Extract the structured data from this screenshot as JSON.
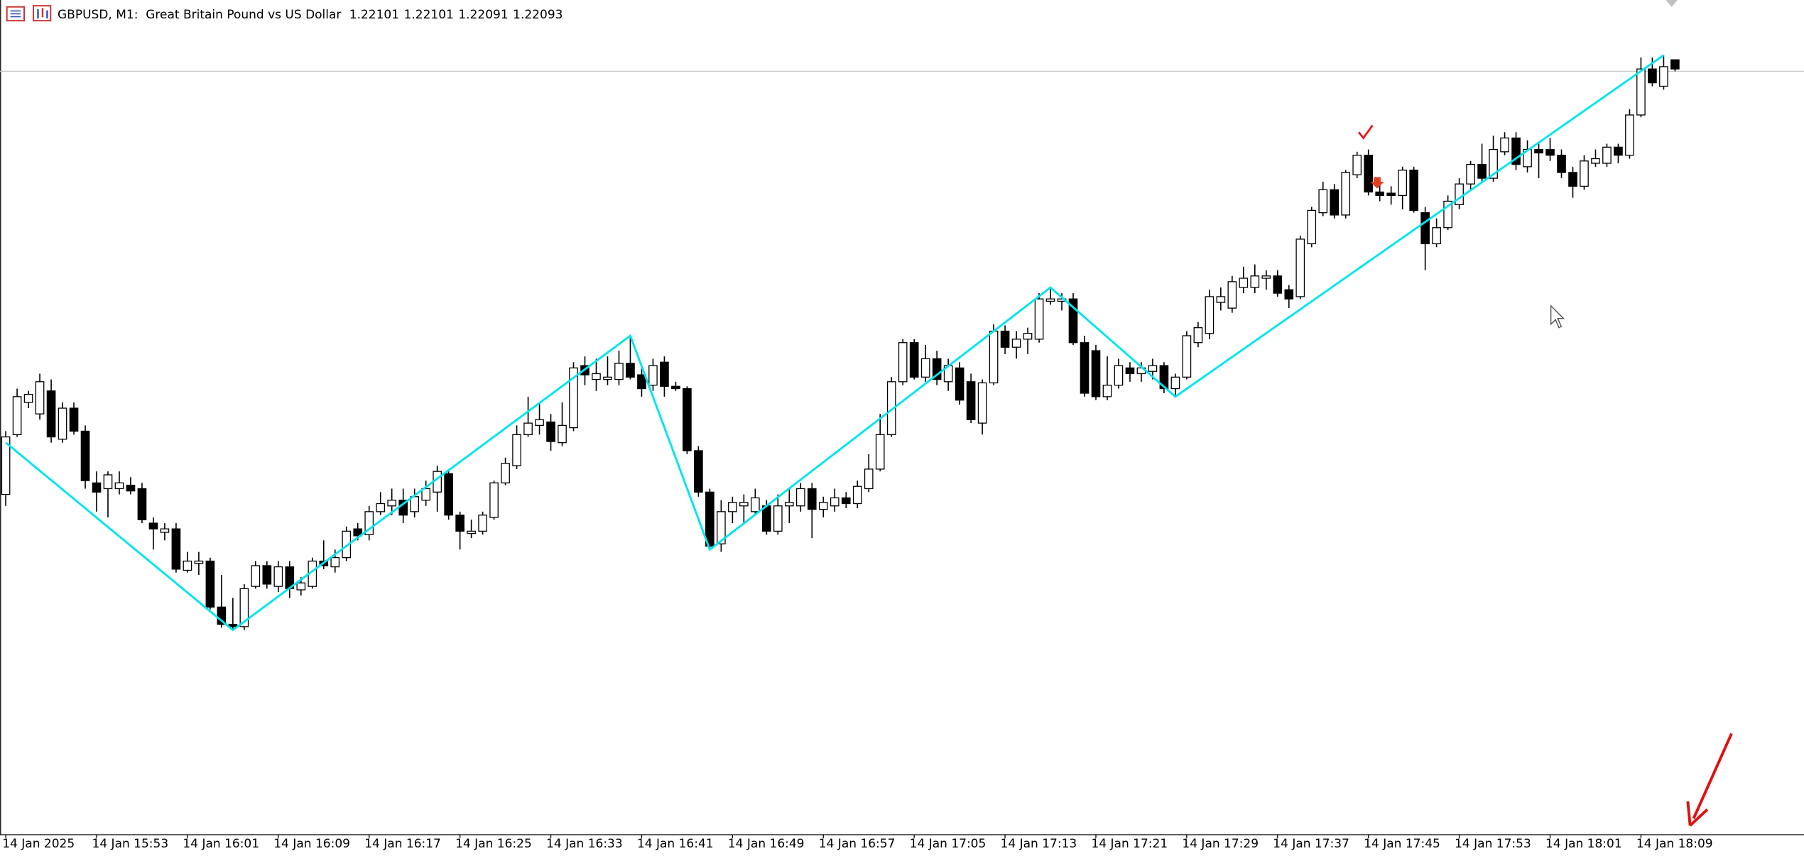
{
  "chart_data": {
    "type": "candlestick",
    "title": "GBPUSD, M1:  Great Britain Pound vs US Dollar",
    "categories": [
      "14 Jan 2025",
      null,
      null,
      null,
      null,
      null,
      null,
      null,
      "14 Jan 15:53",
      null,
      null,
      null,
      null,
      null,
      null,
      null,
      "14 Jan 16:01",
      null,
      null,
      null,
      null,
      null,
      null,
      null,
      "14 Jan 16:09",
      null,
      null,
      null,
      null,
      null,
      null,
      null,
      "14 Jan 16:17",
      null,
      null,
      null,
      null,
      null,
      null,
      null,
      "14 Jan 16:25",
      null,
      null,
      null,
      null,
      null,
      null,
      null,
      "14 Jan 16:33",
      null,
      null,
      null,
      null,
      null,
      null,
      null,
      "14 Jan 16:41",
      null,
      null,
      null,
      null,
      null,
      null,
      null,
      "14 Jan 16:49",
      null,
      null,
      null,
      null,
      null,
      null,
      null,
      "14 Jan 16:57",
      null,
      null,
      null,
      null,
      null,
      null,
      null,
      "14 Jan 17:05",
      null,
      null,
      null,
      null,
      null,
      null,
      null,
      "14 Jan 17:13",
      null,
      null,
      null,
      null,
      null,
      null,
      null,
      "14 Jan 17:21",
      null,
      null,
      null,
      null,
      null,
      null,
      null,
      "14 Jan 17:29",
      null,
      null,
      null,
      null,
      null,
      null,
      null,
      "14 Jan 17:37",
      null,
      null,
      null,
      null,
      null,
      null,
      null,
      "14 Jan 17:45",
      null,
      null,
      null,
      null,
      null,
      null,
      null,
      "14 Jan 17:53",
      null,
      null,
      null,
      null,
      null,
      null,
      null,
      "14 Jan 18:01",
      null,
      null,
      null,
      null,
      null,
      null,
      null,
      "14 Jan 18:09",
      null,
      null,
      null
    ],
    "open": [
      1.21723,
      1.21775,
      1.21803,
      1.21793,
      1.21813,
      1.21771,
      1.21798,
      1.21778,
      1.21733,
      1.21728,
      1.21728,
      1.21731,
      1.21728,
      1.21698,
      1.2169,
      1.21693,
      1.21657,
      1.21663,
      1.21665,
      1.21625,
      1.2161,
      1.21608,
      1.21643,
      1.21661,
      1.21643,
      1.2166,
      1.2164,
      1.21643,
      1.21665,
      1.2166,
      1.21668,
      1.21693,
      1.21688,
      1.21708,
      1.21713,
      1.21718,
      1.21708,
      1.21718,
      1.21725,
      1.21741,
      1.21705,
      1.21689,
      1.21691,
      1.21703,
      1.21733,
      1.21748,
      1.21775,
      1.21783,
      1.21786,
      1.21768,
      1.21781,
      1.21835,
      1.21823,
      1.21823,
      1.21823,
      1.21837,
      1.21827,
      1.21818,
      1.21838,
      1.21817,
      1.21815,
      1.21761,
      1.21725,
      1.2168,
      1.21708,
      1.21713,
      1.21708,
      1.21713,
      1.21691,
      1.21713,
      1.21713,
      1.21728,
      1.2171,
      1.21713,
      1.2172,
      1.21715,
      1.21728,
      1.21745,
      1.21775,
      1.21821,
      1.21855,
      1.21825,
      1.21841,
      1.21821,
      1.21833,
      1.21821,
      1.21785,
      1.2182,
      1.21865,
      1.21851,
      1.21858,
      1.21858,
      1.21891,
      1.21891,
      1.21893,
      1.21855,
      1.21848,
      1.21808,
      1.21818,
      1.21833,
      1.21828,
      1.2183,
      1.21835,
      1.21815,
      1.21825,
      1.21855,
      1.21863,
      1.2189,
      1.21885,
      1.21903,
      1.21903,
      1.21911,
      1.21913,
      1.21901,
      1.21895,
      1.21941,
      1.21968,
      1.21988,
      1.21966,
      1.22001,
      1.22018,
      1.21986,
      1.21985,
      1.21983,
      1.22005,
      1.21968,
      1.21941,
      1.21955,
      1.21975,
      1.21993,
      1.2201,
      1.21998,
      1.22021,
      1.22033,
      1.22008,
      1.22023,
      1.22023,
      1.22018,
      1.22003,
      1.21991,
      1.22011,
      1.22011,
      1.22025,
      1.22018,
      1.22053,
      1.22093,
      1.22078,
      1.22101
    ],
    "high": [
      1.21778,
      1.21815,
      1.21813,
      1.21828,
      1.21823,
      1.21803,
      1.21803,
      1.21783,
      1.21743,
      1.21743,
      1.21743,
      1.21738,
      1.21733,
      1.21703,
      1.21698,
      1.21698,
      1.21673,
      1.21673,
      1.21668,
      1.21653,
      1.21633,
      1.21645,
      1.21665,
      1.21665,
      1.21665,
      1.21665,
      1.21651,
      1.21668,
      1.21683,
      1.21675,
      1.21695,
      1.21698,
      1.21713,
      1.21725,
      1.21728,
      1.21728,
      1.21728,
      1.21735,
      1.21748,
      1.21745,
      1.21708,
      1.21701,
      1.21708,
      1.21735,
      1.21755,
      1.21783,
      1.21808,
      1.21803,
      1.21793,
      1.21803,
      1.21838,
      1.21843,
      1.21841,
      1.21843,
      1.21848,
      1.21861,
      1.21833,
      1.21841,
      1.21843,
      1.21821,
      1.21817,
      1.21765,
      1.21728,
      1.21718,
      1.21721,
      1.21723,
      1.21728,
      1.21718,
      1.21723,
      1.21728,
      1.21733,
      1.21733,
      1.21721,
      1.21728,
      1.21725,
      1.21735,
      1.21758,
      1.21793,
      1.21825,
      1.21858,
      1.21858,
      1.21853,
      1.21848,
      1.21841,
      1.21838,
      1.21828,
      1.21823,
      1.21871,
      1.2187,
      1.21865,
      1.21868,
      1.21898,
      1.21903,
      1.21898,
      1.21898,
      1.21861,
      1.21853,
      1.21843,
      1.21841,
      1.21838,
      1.21838,
      1.21841,
      1.21838,
      1.21828,
      1.21865,
      1.21873,
      1.21901,
      1.21903,
      1.21913,
      1.21921,
      1.21923,
      1.21918,
      1.21918,
      1.21905,
      1.21948,
      1.21973,
      1.21995,
      1.21993,
      1.22005,
      1.22021,
      1.22023,
      1.21995,
      1.21991,
      1.22008,
      1.22008,
      1.21973,
      1.21963,
      1.21983,
      1.21998,
      1.22013,
      1.22028,
      1.22035,
      1.22038,
      1.22038,
      1.22031,
      1.22028,
      1.22033,
      1.22023,
      1.22008,
      1.22018,
      1.22023,
      1.22028,
      1.22028,
      1.22058,
      1.22103,
      1.22103,
      1.22105,
      1.22101
    ],
    "low": [
      1.21713,
      1.21773,
      1.21798,
      1.21788,
      1.21768,
      1.21768,
      1.21775,
      1.21728,
      1.21708,
      1.21703,
      1.21723,
      1.21723,
      1.21698,
      1.21675,
      1.21683,
      1.21655,
      1.21655,
      1.21653,
      1.21623,
      1.21607,
      1.21605,
      1.21605,
      1.21641,
      1.21641,
      1.21638,
      1.21633,
      1.21635,
      1.21641,
      1.21658,
      1.21655,
      1.21665,
      1.21683,
      1.21683,
      1.21705,
      1.21705,
      1.21698,
      1.21703,
      1.21713,
      1.21708,
      1.21701,
      1.21675,
      1.21685,
      1.21688,
      1.21701,
      1.21731,
      1.21745,
      1.21773,
      1.21775,
      1.21761,
      1.21765,
      1.21778,
      1.21818,
      1.21813,
      1.21818,
      1.21818,
      1.21823,
      1.21808,
      1.21813,
      1.21808,
      1.21813,
      1.21758,
      1.21721,
      1.21675,
      1.21673,
      1.21698,
      1.21698,
      1.21705,
      1.21688,
      1.21688,
      1.21698,
      1.21708,
      1.21685,
      1.21703,
      1.21708,
      1.21711,
      1.21711,
      1.21725,
      1.21743,
      1.21773,
      1.21818,
      1.21823,
      1.21821,
      1.21818,
      1.21813,
      1.21801,
      1.21785,
      1.21775,
      1.21818,
      1.21845,
      1.21841,
      1.21845,
      1.21855,
      1.21888,
      1.21883,
      1.21853,
      1.21808,
      1.21805,
      1.21805,
      1.21815,
      1.21821,
      1.21821,
      1.21823,
      1.21811,
      1.21808,
      1.21823,
      1.21851,
      1.21858,
      1.21883,
      1.21881,
      1.21898,
      1.21898,
      1.21901,
      1.21895,
      1.21885,
      1.21893,
      1.21938,
      1.21965,
      1.21963,
      1.21963,
      1.21998,
      1.21983,
      1.21978,
      1.21975,
      1.21971,
      1.21968,
      1.21918,
      1.21938,
      1.21953,
      1.21971,
      1.21988,
      1.21995,
      1.21995,
      1.22018,
      1.22005,
      1.22003,
      1.21998,
      1.22013,
      1.21998,
      1.21981,
      1.21988,
      1.22008,
      1.22008,
      1.22011,
      1.22015,
      1.22051,
      1.22078,
      1.22075,
      1.22091
    ],
    "close": [
      1.21773,
      1.21808,
      1.2181,
      1.21821,
      1.21773,
      1.21798,
      1.21778,
      1.21735,
      1.21725,
      1.2174,
      1.21733,
      1.21726,
      1.21701,
      1.21693,
      1.21693,
      1.21658,
      1.21665,
      1.21665,
      1.21625,
      1.2161,
      1.21608,
      1.21641,
      1.21661,
      1.21645,
      1.2166,
      1.21641,
      1.21646,
      1.21665,
      1.21661,
      1.21668,
      1.21691,
      1.21687,
      1.21708,
      1.21715,
      1.21718,
      1.21705,
      1.21721,
      1.21728,
      1.21743,
      1.21705,
      1.21691,
      1.21691,
      1.21705,
      1.21733,
      1.2175,
      1.21775,
      1.21785,
      1.21788,
      1.21769,
      1.21783,
      1.21833,
      1.21827,
      1.21828,
      1.21825,
      1.21837,
      1.21825,
      1.21815,
      1.21835,
      1.21817,
      1.21815,
      1.21761,
      1.21725,
      1.21678,
      1.21708,
      1.21716,
      1.21716,
      1.2172,
      1.21691,
      1.21713,
      1.21716,
      1.21728,
      1.2171,
      1.21716,
      1.2172,
      1.21715,
      1.2173,
      1.21745,
      1.21775,
      1.21821,
      1.21855,
      1.21825,
      1.21841,
      1.21823,
      1.21835,
      1.21805,
      1.21788,
      1.2182,
      1.21865,
      1.21851,
      1.21858,
      1.21863,
      1.21893,
      1.21893,
      1.21893,
      1.21855,
      1.21811,
      1.21808,
      1.21818,
      1.21835,
      1.21828,
      1.21833,
      1.21835,
      1.21815,
      1.21825,
      1.21861,
      1.21868,
      1.21895,
      1.21895,
      1.21908,
      1.21911,
      1.21913,
      1.21913,
      1.21898,
      1.21893,
      1.21945,
      1.2197,
      1.21988,
      1.21966,
      1.22003,
      1.22018,
      1.21986,
      1.21983,
      1.21983,
      1.22005,
      1.2197,
      1.21941,
      1.21955,
      1.21978,
      1.21993,
      1.2201,
      1.21998,
      1.22023,
      1.22033,
      1.2201,
      1.22023,
      1.2202,
      1.22018,
      1.22003,
      1.21991,
      1.22013,
      1.22015,
      1.22025,
      1.22018,
      1.22053,
      1.22093,
      1.22081,
      1.22095,
      1.22093
    ],
    "up_color": "#ffffff",
    "down_color": "#000000",
    "wick_color": "#000000",
    "zigzag": {
      "color": "#00e5ee",
      "x": [
        0,
        20,
        55,
        62,
        92,
        103,
        146
      ],
      "values": [
        1.21768,
        1.21605,
        1.21861,
        1.21675,
        1.21903,
        1.21808,
        1.22105
      ]
    },
    "bid": 1.22093,
    "bid_color": "#c8c8c8",
    "ylim": [
      1.21427,
      1.22153
    ]
  }
}
